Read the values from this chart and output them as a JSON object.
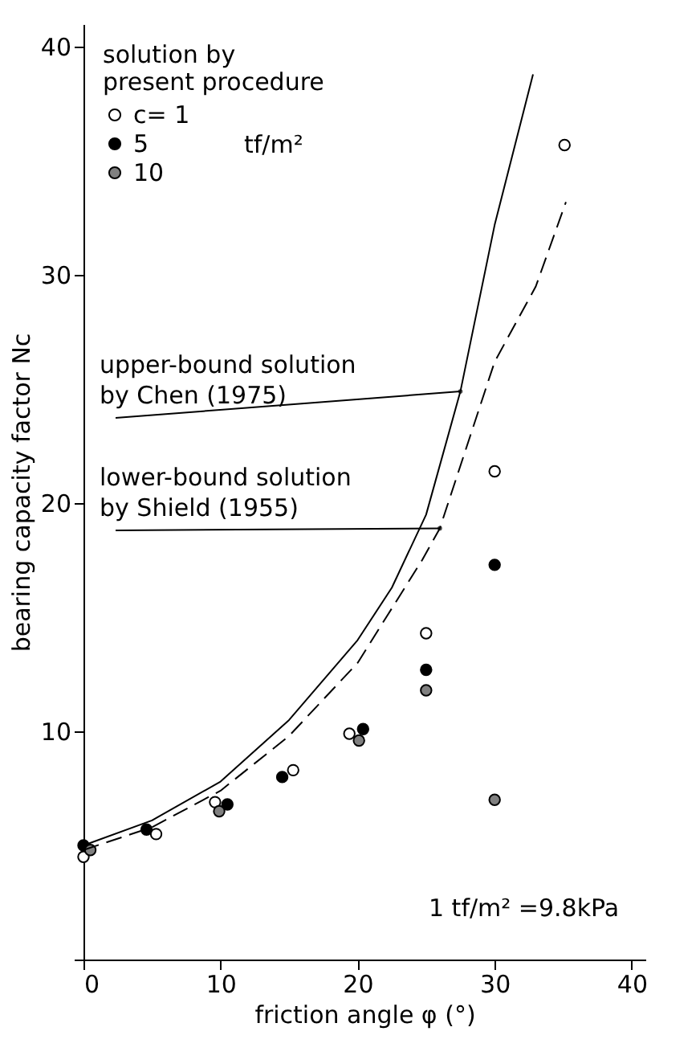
{
  "chart_data": {
    "type": "scatter",
    "xlabel": "friction angle φ (°)",
    "ylabel": "bearing capacity factor Nc",
    "legend_title": [
      "solution by",
      "present procedure"
    ],
    "legend": "top left",
    "grid": false,
    "xlim": [
      0,
      41
    ],
    "ylim": [
      0,
      41
    ],
    "xticks": [
      0,
      10,
      20,
      30,
      40
    ],
    "yticks": [
      {
        "value": 0,
        "label": null
      },
      10,
      20,
      30,
      40
    ],
    "series": [
      {
        "name": "c= 1",
        "marker": "circle",
        "color": "#ffffff",
        "x": [
          0,
          5.3,
          9.6,
          15.3,
          19.4,
          25,
          30,
          35.1
        ],
        "values": [
          4.5,
          5.5,
          6.9,
          8.3,
          9.9,
          14.3,
          21.4,
          35.7
        ]
      },
      {
        "name": "5",
        "marker": "circle",
        "color": "#000000",
        "x": [
          0,
          4.6,
          10.5,
          14.5,
          20.4,
          25,
          30
        ],
        "values": [
          5.0,
          5.7,
          6.8,
          8.0,
          10.1,
          12.7,
          17.3
        ]
      },
      {
        "name": "10",
        "marker": "circle",
        "color": "#808080",
        "x": [
          0.5,
          9.9,
          20.1,
          25,
          30
        ],
        "values": [
          4.8,
          6.5,
          9.6,
          11.8,
          7.0
        ]
      },
      {
        "type": "line",
        "marker": "none",
        "line_style": "solid",
        "color": "#000000",
        "x": [
          0,
          5,
          10,
          15,
          20,
          22.5,
          25,
          27.5,
          30,
          32.8
        ],
        "values": [
          5.0,
          6.1,
          7.8,
          10.5,
          14.0,
          16.3,
          19.5,
          24.9,
          32.2,
          38.8
        ]
      },
      {
        "type": "line",
        "marker": "none",
        "line_style": "dashed",
        "color": "#000000",
        "x": [
          0,
          5,
          10,
          15,
          20,
          24.7,
          26,
          30,
          33,
          35.2
        ],
        "values": [
          4.8,
          5.8,
          7.4,
          9.8,
          13.0,
          17.5,
          18.9,
          26.2,
          29.5,
          33.2
        ]
      }
    ],
    "annotations": [
      "tf/m²",
      {
        "text": "upper-bound solution\nby Chen (1975)",
        "x": 27.5,
        "y": 24.9
      },
      {
        "text": "lower-bound solution\nby Shield (1955)",
        "x": 26,
        "y": 18.9
      },
      "1 tf/m² =9.8kPa"
    ]
  }
}
